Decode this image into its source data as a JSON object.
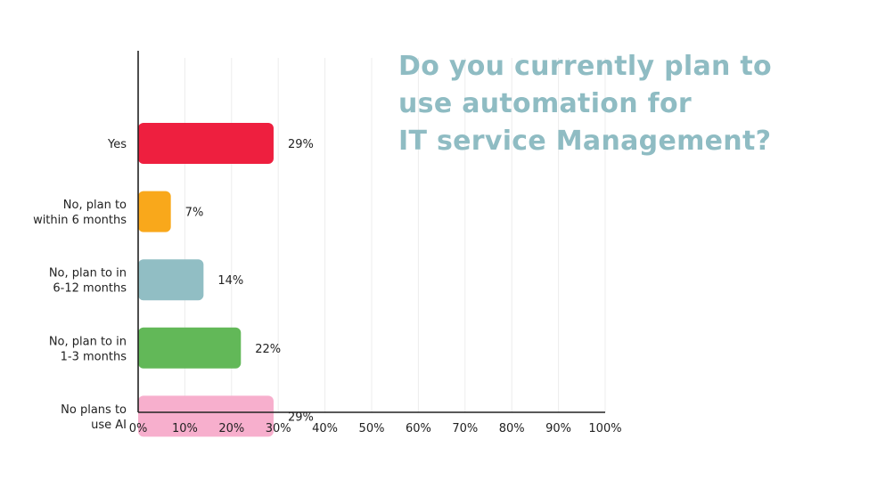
{
  "chart_data": {
    "type": "bar",
    "orientation": "horizontal",
    "title_lines": [
      "Do you currently plan to",
      "use automation for",
      "IT service Management?"
    ],
    "categories": [
      [
        "Yes"
      ],
      [
        "No, plan to",
        "within 6 months"
      ],
      [
        "No, plan to in",
        "6-12 months"
      ],
      [
        "No, plan to in",
        "1-3 months"
      ],
      [
        "No plans to",
        "use AI"
      ]
    ],
    "values": [
      29,
      7,
      14,
      22,
      29
    ],
    "value_labels": [
      "29%",
      "7%",
      "14%",
      "22%",
      "29%"
    ],
    "colors": [
      "#ee1f3f",
      "#f9a81b",
      "#91bec4",
      "#62b858",
      "#f7afcd"
    ],
    "xlim": [
      0,
      100
    ],
    "x_ticks": [
      "0%",
      "10%",
      "20%",
      "30%",
      "40%",
      "50%",
      "60%",
      "70%",
      "80%",
      "90%",
      "100%"
    ],
    "grid": "vertical",
    "xlabel": "",
    "ylabel": ""
  }
}
